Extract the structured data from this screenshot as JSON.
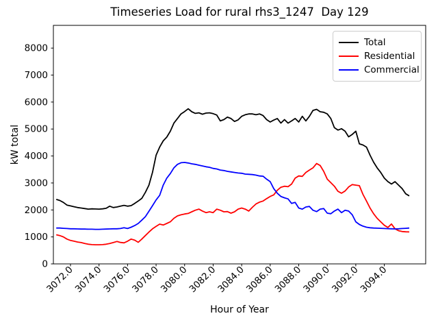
{
  "figure": {
    "background": "#ffffff"
  },
  "chart_data": {
    "type": "line",
    "title": "Timeseries Load for rural rhs3_1247  Day 129",
    "xlabel": "Hour of Year",
    "ylabel": "kW total",
    "grid": false,
    "legend_position": "upper right",
    "xlim": [
      3070.8,
      3096.9
    ],
    "ylim": [
      0,
      8843
    ],
    "xticks": {
      "values": [
        3072,
        3074,
        3076,
        3078,
        3080,
        3082,
        3084,
        3086,
        3088,
        3090,
        3092,
        3094
      ],
      "labels": [
        "3072.0",
        "3074.0",
        "3076.0",
        "3078.0",
        "3080.0",
        "3082.0",
        "3084.0",
        "3086.0",
        "3088.0",
        "3090.0",
        "3092.0",
        "3094.0"
      ]
    },
    "yticks": {
      "values": [
        0,
        1000,
        2000,
        3000,
        4000,
        5000,
        6000,
        7000,
        8000
      ],
      "labels": [
        "0",
        "1000",
        "2000",
        "3000",
        "4000",
        "5000",
        "6000",
        "7000",
        "8000"
      ]
    },
    "x": [
      3071,
      3071.25,
      3071.5,
      3071.75,
      3072,
      3072.25,
      3072.5,
      3072.75,
      3073,
      3073.25,
      3073.5,
      3073.75,
      3074,
      3074.25,
      3074.5,
      3074.75,
      3075,
      3075.25,
      3075.5,
      3075.75,
      3076,
      3076.25,
      3076.5,
      3076.75,
      3077,
      3077.25,
      3077.5,
      3077.75,
      3078,
      3078.25,
      3078.5,
      3078.75,
      3079,
      3079.25,
      3079.5,
      3079.75,
      3080,
      3080.25,
      3080.5,
      3080.75,
      3081,
      3081.25,
      3081.5,
      3081.75,
      3082,
      3082.25,
      3082.5,
      3082.75,
      3083,
      3083.25,
      3083.5,
      3083.75,
      3084,
      3084.25,
      3084.5,
      3084.75,
      3085,
      3085.25,
      3085.5,
      3085.75,
      3086,
      3086.25,
      3086.5,
      3086.75,
      3087,
      3087.25,
      3087.5,
      3087.75,
      3088,
      3088.25,
      3088.5,
      3088.75,
      3089,
      3089.25,
      3089.5,
      3089.75,
      3090,
      3090.25,
      3090.5,
      3090.75,
      3091,
      3091.25,
      3091.5,
      3091.75,
      3092,
      3092.25,
      3092.5,
      3092.75,
      3093,
      3093.25,
      3093.5,
      3093.75,
      3094,
      3094.25,
      3094.5,
      3094.75,
      3095,
      3095.25,
      3095.5,
      3095.75
    ],
    "series": [
      {
        "name": "Total",
        "color": "#000000",
        "values": [
          2390,
          2350,
          2280,
          2180,
          2150,
          2120,
          2090,
          2070,
          2050,
          2030,
          2040,
          2035,
          2030,
          2040,
          2060,
          2140,
          2090,
          2110,
          2140,
          2170,
          2140,
          2160,
          2240,
          2330,
          2430,
          2650,
          2920,
          3400,
          4030,
          4330,
          4560,
          4700,
          4920,
          5220,
          5390,
          5560,
          5650,
          5750,
          5640,
          5580,
          5600,
          5550,
          5590,
          5600,
          5570,
          5520,
          5300,
          5350,
          5440,
          5390,
          5280,
          5340,
          5470,
          5530,
          5560,
          5560,
          5530,
          5560,
          5500,
          5350,
          5260,
          5330,
          5390,
          5220,
          5350,
          5220,
          5300,
          5390,
          5260,
          5470,
          5300,
          5470,
          5690,
          5730,
          5640,
          5620,
          5560,
          5390,
          5050,
          4960,
          5010,
          4920,
          4710,
          4800,
          4920,
          4450,
          4410,
          4330,
          4030,
          3770,
          3560,
          3390,
          3180,
          3050,
          2960,
          3050,
          2920,
          2790,
          2600,
          2520
        ]
      },
      {
        "name": "Residential",
        "color": "#ff0000",
        "values": [
          1080,
          1050,
          1000,
          920,
          870,
          840,
          810,
          790,
          755,
          730,
          715,
          710,
          710,
          715,
          730,
          755,
          790,
          830,
          795,
          780,
          840,
          920,
          880,
          800,
          920,
          1050,
          1180,
          1300,
          1390,
          1475,
          1440,
          1500,
          1560,
          1690,
          1780,
          1820,
          1850,
          1870,
          1930,
          1990,
          2030,
          1960,
          1900,
          1930,
          1900,
          2030,
          1990,
          1930,
          1940,
          1880,
          1930,
          2030,
          2070,
          2030,
          1960,
          2100,
          2220,
          2290,
          2330,
          2420,
          2500,
          2560,
          2730,
          2840,
          2880,
          2860,
          2960,
          3180,
          3260,
          3245,
          3390,
          3480,
          3560,
          3720,
          3650,
          3430,
          3140,
          3010,
          2880,
          2690,
          2620,
          2700,
          2850,
          2940,
          2920,
          2900,
          2580,
          2330,
          2070,
          1860,
          1690,
          1560,
          1430,
          1350,
          1480,
          1300,
          1230,
          1200,
          1190,
          1185
        ]
      },
      {
        "name": "Commercial",
        "color": "#0000ff",
        "values": [
          1330,
          1330,
          1320,
          1310,
          1300,
          1300,
          1295,
          1290,
          1290,
          1285,
          1285,
          1280,
          1280,
          1285,
          1290,
          1295,
          1300,
          1300,
          1310,
          1340,
          1310,
          1360,
          1420,
          1500,
          1620,
          1750,
          1950,
          2160,
          2370,
          2540,
          2920,
          3180,
          3350,
          3560,
          3690,
          3750,
          3760,
          3740,
          3710,
          3690,
          3660,
          3630,
          3600,
          3580,
          3540,
          3520,
          3480,
          3460,
          3430,
          3410,
          3390,
          3370,
          3360,
          3330,
          3320,
          3310,
          3290,
          3260,
          3250,
          3140,
          3050,
          2790,
          2620,
          2500,
          2450,
          2410,
          2240,
          2280,
          2070,
          2030,
          2110,
          2130,
          1990,
          1940,
          2030,
          2050,
          1880,
          1860,
          1960,
          2030,
          1900,
          1990,
          1960,
          1820,
          1560,
          1460,
          1400,
          1360,
          1340,
          1330,
          1325,
          1320,
          1310,
          1305,
          1300,
          1295,
          1300,
          1310,
          1320,
          1330
        ]
      }
    ]
  }
}
